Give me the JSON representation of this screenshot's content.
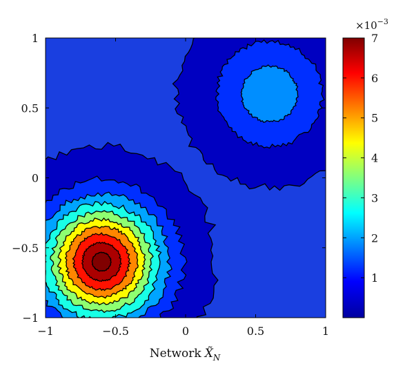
{
  "chart_data": {
    "type": "heatmap",
    "subtype": "filled-contour",
    "title": "",
    "xlabel": "Network",
    "xlabel_symbol": "X̃",
    "xlabel_subscript": "N",
    "ylabel": "",
    "xlim": [
      -1,
      1
    ],
    "ylim": [
      -1,
      1
    ],
    "x_ticks": [
      "−1",
      "−0.5",
      "0",
      "0.5",
      "1"
    ],
    "y_ticks": [
      "1",
      "0.5",
      "0",
      "−0.5",
      "−1"
    ],
    "grid": false,
    "colormap": "jet",
    "colorbar": {
      "range": [
        0,
        0.007
      ],
      "ticks": [
        "7",
        "6",
        "5",
        "4",
        "3",
        "2",
        "1"
      ],
      "exponent_multiplier": "×10",
      "exponent_power": "−3"
    },
    "peaks": [
      {
        "x": -0.6,
        "y": -0.6,
        "max": 0.0072,
        "sigma": 0.28
      },
      {
        "x": 0.6,
        "y": 0.6,
        "max": 0.0021,
        "sigma": 0.27
      }
    ],
    "contour_levels": [
      0.0001,
      0.0008,
      0.0016,
      0.0024,
      0.0032,
      0.004,
      0.0048,
      0.0056,
      0.0064,
      0.007
    ]
  }
}
